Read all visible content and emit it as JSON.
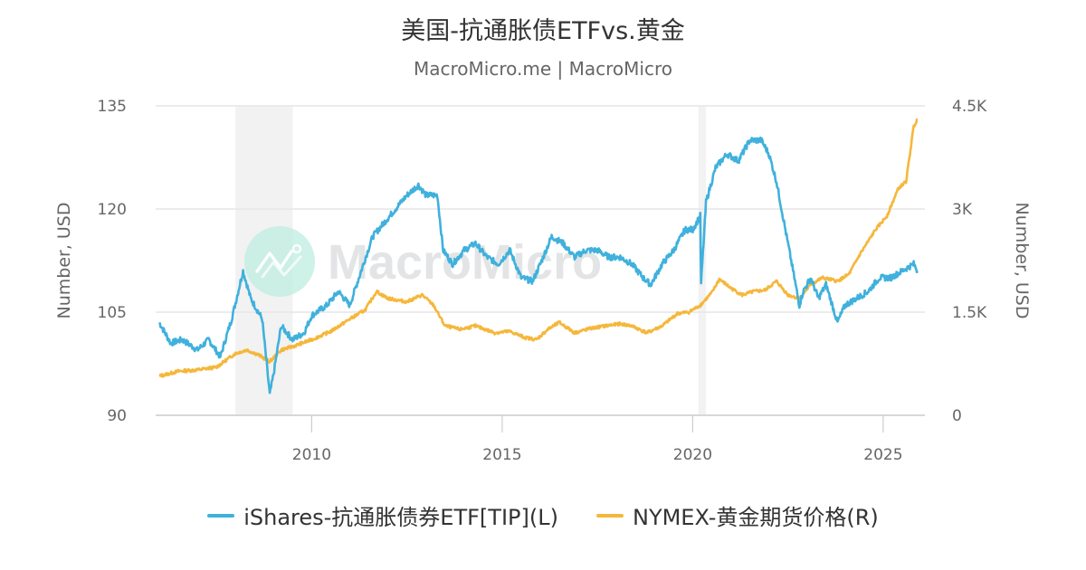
{
  "header": {
    "title": "美国-抗通胀债ETFvs.黄金",
    "subtitle": "MacroMicro.me | MacroMicro"
  },
  "watermark": {
    "text": "MacroMicro",
    "icon": "macromicro-logo-icon"
  },
  "chart_data": {
    "type": "line",
    "title": "美国-抗通胀债ETFvs.黄金",
    "subtitle": "MacroMicro.me | MacroMicro",
    "xlabel": "",
    "ylabel_left": "Number, USD",
    "ylabel_right": "Number, USD",
    "x_ticks": [
      "2010",
      "2015",
      "2020",
      "2025"
    ],
    "y_left_ticks": [
      "90",
      "105",
      "120",
      "135"
    ],
    "y_right_ticks": [
      "0",
      "1.5K",
      "3K",
      "4.5K"
    ],
    "ylim_left": [
      90,
      135
    ],
    "ylim_right": [
      0,
      4500
    ],
    "xlim": [
      2006.0,
      2025.9
    ],
    "grid": true,
    "legend_position": "bottom",
    "recession_shading": [
      [
        2008.0,
        2009.5
      ],
      [
        2020.15,
        2020.35
      ]
    ],
    "series": [
      {
        "name": "iShares-抗通胀债券ETF[TIP](L)",
        "axis": "left",
        "color": "#3fb1dc",
        "x": [
          2006.0,
          2006.3,
          2006.6,
          2007.0,
          2007.3,
          2007.6,
          2007.9,
          2008.2,
          2008.4,
          2008.7,
          2008.9,
          2009.0,
          2009.2,
          2009.5,
          2009.8,
          2010.0,
          2010.4,
          2010.7,
          2011.0,
          2011.3,
          2011.6,
          2011.9,
          2012.2,
          2012.5,
          2012.8,
          2013.0,
          2013.3,
          2013.45,
          2013.7,
          2014.0,
          2014.3,
          2014.6,
          2014.9,
          2015.2,
          2015.5,
          2015.8,
          2016.0,
          2016.3,
          2016.6,
          2016.9,
          2017.2,
          2017.5,
          2017.8,
          2018.1,
          2018.4,
          2018.7,
          2018.9,
          2019.2,
          2019.5,
          2019.8,
          2020.0,
          2020.2,
          2020.22,
          2020.35,
          2020.6,
          2020.9,
          2021.2,
          2021.5,
          2021.8,
          2022.0,
          2022.2,
          2022.4,
          2022.6,
          2022.8,
          2022.9,
          2023.1,
          2023.3,
          2023.5,
          2023.8,
          2024.0,
          2024.3,
          2024.6,
          2024.9,
          2025.2,
          2025.5,
          2025.8,
          2025.9
        ],
        "values": [
          103.5,
          100.5,
          101,
          99.5,
          101,
          98.5,
          104,
          111,
          107,
          104,
          93,
          96,
          103,
          101,
          102,
          104.5,
          106,
          108,
          106,
          111,
          116,
          118,
          120,
          122,
          123.5,
          122,
          122,
          114,
          112,
          114,
          115,
          113,
          112,
          114,
          110,
          109.5,
          112,
          116,
          115,
          113,
          114,
          114,
          113,
          113,
          112,
          110,
          109,
          112,
          114,
          117,
          117,
          119,
          109,
          121,
          126,
          128,
          127,
          130,
          130,
          128,
          124,
          118,
          112,
          106,
          108,
          110,
          107,
          109,
          103.5,
          106,
          107,
          108,
          110,
          110,
          111,
          112,
          111
        ],
        "ylim": [
          90,
          135
        ]
      },
      {
        "name": "NYMEX-黄金期货价格(R)",
        "axis": "right",
        "color": "#f5b73b",
        "x": [
          2006.0,
          2006.5,
          2007.0,
          2007.5,
          2008.0,
          2008.3,
          2008.6,
          2008.9,
          2009.2,
          2009.5,
          2010.0,
          2010.5,
          2011.0,
          2011.4,
          2011.7,
          2012.0,
          2012.5,
          2012.9,
          2013.2,
          2013.5,
          2013.9,
          2014.3,
          2014.8,
          2015.2,
          2015.6,
          2015.9,
          2016.2,
          2016.5,
          2016.9,
          2017.3,
          2017.7,
          2018.1,
          2018.4,
          2018.8,
          2019.2,
          2019.6,
          2019.9,
          2020.2,
          2020.5,
          2020.7,
          2021.0,
          2021.3,
          2021.6,
          2021.9,
          2022.2,
          2022.5,
          2022.8,
          2023.1,
          2023.4,
          2023.8,
          2024.1,
          2024.4,
          2024.8,
          2025.1,
          2025.4,
          2025.6,
          2025.8,
          2025.9
        ],
        "values": [
          570,
          640,
          660,
          700,
          900,
          950,
          880,
          780,
          950,
          1000,
          1100,
          1220,
          1400,
          1530,
          1800,
          1700,
          1650,
          1750,
          1600,
          1300,
          1250,
          1300,
          1200,
          1220,
          1130,
          1100,
          1250,
          1350,
          1200,
          1260,
          1300,
          1330,
          1300,
          1200,
          1300,
          1480,
          1500,
          1600,
          1780,
          1980,
          1850,
          1750,
          1800,
          1820,
          1950,
          1750,
          1700,
          1900,
          2000,
          1950,
          2050,
          2350,
          2700,
          2900,
          3300,
          3400,
          4200,
          4300
        ],
        "ylim": [
          0,
          4500
        ]
      }
    ]
  },
  "legend": {
    "items": [
      {
        "label": "iShares-抗通胀债券ETF[TIP](L)",
        "color": "#3fb1dc"
      },
      {
        "label": "NYMEX-黄金期货价格(R)",
        "color": "#f5b73b"
      }
    ]
  }
}
